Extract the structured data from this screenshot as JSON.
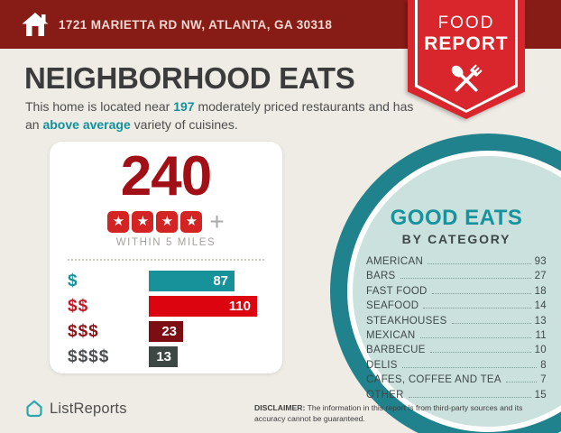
{
  "colors": {
    "header_bg": "#871B16",
    "ribbon_red": "#D8262C",
    "background": "#EFEBE5",
    "accent_teal": "#12919B",
    "big_number_red": "#A11016",
    "star_red": "#D32323",
    "circle_ring": "#20828D",
    "circle_fill": "#CBE1DD",
    "bar_teal": "#17929B",
    "bar_red": "#DB040F",
    "bar_maroon": "#7C0E13",
    "bar_gray": "#3D4744"
  },
  "header": {
    "address": "1721 MARIETTA RD NW, ATLANTA, GA 30318"
  },
  "ribbon": {
    "line1": "FOOD",
    "line2": "REPORT"
  },
  "intro": {
    "title": "NEIGHBORHOOD EATS",
    "sentence_pre": "This home is located near ",
    "count": "197",
    "sentence_mid": " moderately priced restaurants and has an ",
    "highlight": "above average",
    "sentence_post": " variety of cuisines."
  },
  "stats_card": {
    "total": "240",
    "star_count": 4,
    "plus": "+",
    "radius_label": "WITHIN 5 MILES",
    "max_value": 110,
    "bars": [
      {
        "label": "$",
        "value": 87,
        "bar_color": "#17929B",
        "label_color": "#17929B"
      },
      {
        "label": "$$",
        "value": 110,
        "bar_color": "#DB040F",
        "label_color": "#C01A26"
      },
      {
        "label": "$$$",
        "value": 23,
        "bar_color": "#7C0E13",
        "label_color": "#8A161B"
      },
      {
        "label": "$$$$",
        "value": 13,
        "bar_color": "#3D4744",
        "label_color": "#4C4F52"
      }
    ]
  },
  "good_eats": {
    "title": "GOOD EATS",
    "subtitle": "BY CATEGORY",
    "categories": [
      {
        "name": "AMERICAN",
        "value": 93
      },
      {
        "name": "BARS",
        "value": 27
      },
      {
        "name": "FAST FOOD",
        "value": 18
      },
      {
        "name": "SEAFOOD",
        "value": 14
      },
      {
        "name": "STEAKHOUSES",
        "value": 13
      },
      {
        "name": "MEXICAN",
        "value": 11
      },
      {
        "name": "BARBECUE",
        "value": 10
      },
      {
        "name": "DELIS",
        "value": 8
      },
      {
        "name": "CAFES, COFFEE AND TEA",
        "value": 7
      },
      {
        "name": "OTHER",
        "value": 15
      }
    ]
  },
  "footer": {
    "brand": "ListReports",
    "disclaimer_label": "DISCLAIMER:",
    "disclaimer_text": " The information in this report is from third-party sources and its accuracy cannot be guaranteed."
  },
  "chart_data": [
    {
      "type": "bar",
      "orientation": "horizontal",
      "title": "Restaurants by price tier (240 total, 4 stars, within 5 miles)",
      "categories": [
        "$",
        "$$",
        "$$$",
        "$$$$"
      ],
      "values": [
        87,
        110,
        23,
        13
      ],
      "xlim": [
        0,
        110
      ],
      "colors": [
        "#17929B",
        "#DB040F",
        "#7C0E13",
        "#3D4744"
      ],
      "annotations": {
        "total": 240,
        "rating_stars": 4,
        "radius_label": "WITHIN 5 MILES"
      }
    },
    {
      "type": "table",
      "title": "GOOD EATS BY CATEGORY",
      "categories": [
        "AMERICAN",
        "BARS",
        "FAST FOOD",
        "SEAFOOD",
        "STEAKHOUSES",
        "MEXICAN",
        "BARBECUE",
        "DELIS",
        "CAFES, COFFEE AND TEA",
        "OTHER"
      ],
      "values": [
        93,
        27,
        18,
        14,
        13,
        11,
        10,
        8,
        7,
        15
      ]
    }
  ]
}
